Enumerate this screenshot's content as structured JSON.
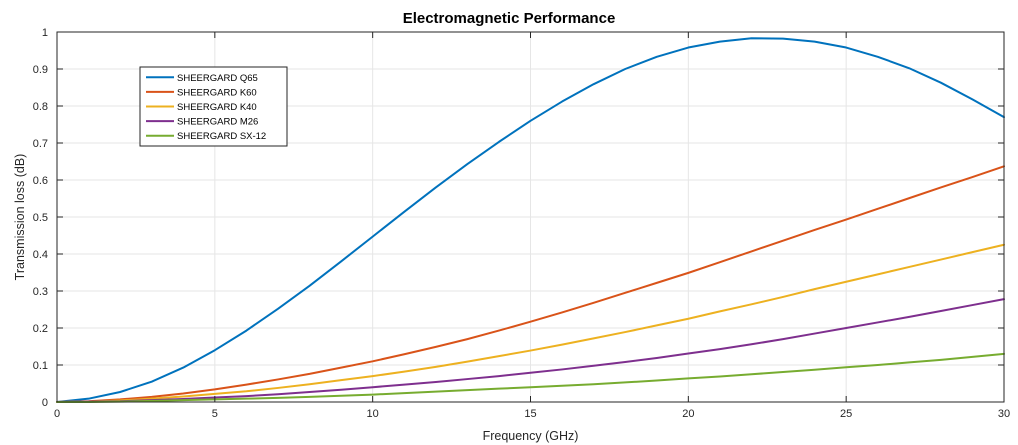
{
  "chart_data": {
    "type": "line",
    "title": "Electromagnetic Performance",
    "xlabel": "Frequency (GHz)",
    "ylabel": "Transmission loss (dB)",
    "xlim": [
      0,
      30
    ],
    "ylim": [
      0,
      1
    ],
    "xticks": [
      0,
      5,
      10,
      15,
      20,
      25,
      30
    ],
    "yticks": [
      0,
      0.1,
      0.2,
      0.3,
      0.4,
      0.5,
      0.6,
      0.7,
      0.8,
      0.9,
      1
    ],
    "xtick_labels": [
      "0",
      "5",
      "10",
      "15",
      "20",
      "25",
      "30"
    ],
    "ytick_labels": [
      "0",
      "0.1",
      "0.2",
      "0.3",
      "0.4",
      "0.5",
      "0.6",
      "0.7",
      "0.8",
      "0.9",
      "1"
    ],
    "grid": true,
    "legend_position": "top-left",
    "x": [
      0,
      1,
      2,
      3,
      4,
      5,
      6,
      7,
      8,
      9,
      10,
      11,
      12,
      13,
      14,
      15,
      16,
      17,
      18,
      19,
      20,
      21,
      22,
      23,
      24,
      25,
      26,
      27,
      28,
      29,
      30
    ],
    "series": [
      {
        "name": "SHEERGARD Q65",
        "color": "#0072BD",
        "values": [
          0,
          0.009,
          0.027,
          0.055,
          0.093,
          0.14,
          0.193,
          0.252,
          0.314,
          0.38,
          0.447,
          0.514,
          0.58,
          0.643,
          0.703,
          0.76,
          0.812,
          0.859,
          0.9,
          0.933,
          0.958,
          0.974,
          0.983,
          0.982,
          0.974,
          0.958,
          0.933,
          0.902,
          0.863,
          0.818,
          0.77
        ]
      },
      {
        "name": "SHEERGARD K60",
        "color": "#D95319",
        "values": [
          0,
          0.002,
          0.007,
          0.014,
          0.023,
          0.034,
          0.047,
          0.061,
          0.076,
          0.093,
          0.11,
          0.129,
          0.149,
          0.17,
          0.193,
          0.217,
          0.242,
          0.268,
          0.295,
          0.322,
          0.349,
          0.378,
          0.407,
          0.436,
          0.465,
          0.493,
          0.522,
          0.551,
          0.58,
          0.608,
          0.637
        ]
      },
      {
        "name": "SHEERGARD K40",
        "color": "#EDB120",
        "values": [
          0,
          0.001,
          0.004,
          0.009,
          0.015,
          0.022,
          0.029,
          0.038,
          0.048,
          0.059,
          0.07,
          0.082,
          0.095,
          0.109,
          0.124,
          0.139,
          0.155,
          0.172,
          0.189,
          0.207,
          0.225,
          0.245,
          0.264,
          0.284,
          0.305,
          0.325,
          0.345,
          0.365,
          0.385,
          0.405,
          0.425
        ]
      },
      {
        "name": "SHEERGARD M26",
        "color": "#7E2F8E",
        "values": [
          0,
          0.001,
          0.002,
          0.005,
          0.008,
          0.012,
          0.016,
          0.021,
          0.027,
          0.033,
          0.04,
          0.047,
          0.054,
          0.062,
          0.07,
          0.079,
          0.088,
          0.098,
          0.108,
          0.119,
          0.131,
          0.143,
          0.156,
          0.17,
          0.185,
          0.2,
          0.215,
          0.23,
          0.246,
          0.262,
          0.278
        ]
      },
      {
        "name": "SHEERGARD SX-12",
        "color": "#77AC30",
        "values": [
          0,
          0.0,
          0.001,
          0.003,
          0.005,
          0.007,
          0.009,
          0.011,
          0.014,
          0.017,
          0.02,
          0.024,
          0.028,
          0.032,
          0.036,
          0.04,
          0.044,
          0.048,
          0.053,
          0.058,
          0.064,
          0.069,
          0.075,
          0.081,
          0.087,
          0.094,
          0.1,
          0.107,
          0.114,
          0.122,
          0.13
        ]
      }
    ]
  }
}
